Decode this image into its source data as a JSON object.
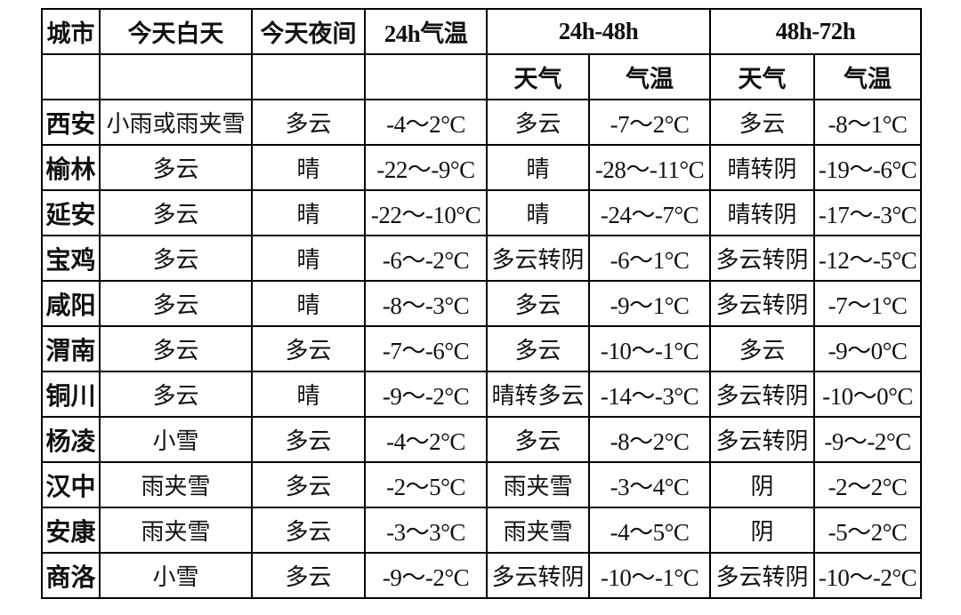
{
  "header": {
    "top": [
      "城市",
      "今天白天",
      "今天夜间",
      "24h气温",
      "24h-48h",
      "48h-72h"
    ],
    "sub": [
      "天气",
      "气温",
      "天气",
      "气温"
    ]
  },
  "rows": [
    [
      "西安",
      "小雨或雨夹雪",
      "多云",
      "-4～2°C",
      "多云",
      "-7～2°C",
      "多云",
      "-8～1°C"
    ],
    [
      "榆林",
      "多云",
      "晴",
      "-22～-9°C",
      "晴",
      "-28～-11°C",
      "晴转阴",
      "-19～-6°C"
    ],
    [
      "延安",
      "多云",
      "晴",
      "-22～-10°C",
      "晴",
      "-24～-7°C",
      "晴转阴",
      "-17～-3°C"
    ],
    [
      "宝鸡",
      "多云",
      "晴",
      "-6～-2°C",
      "多云转阴",
      "-6～1°C",
      "多云转阴",
      "-12～-5°C"
    ],
    [
      "咸阳",
      "多云",
      "晴",
      "-8～-3°C",
      "多云",
      "-9～1°C",
      "多云转阴",
      "-7～1°C"
    ],
    [
      "渭南",
      "多云",
      "多云",
      "-7～-6°C",
      "多云",
      "-10～-1°C",
      "多云",
      "-9～0°C"
    ],
    [
      "铜川",
      "多云",
      "晴",
      "-9～-2°C",
      "晴转多云",
      "-14～-3°C",
      "多云转阴",
      "-10～0°C"
    ],
    [
      "杨凌",
      "小雪",
      "多云",
      "-4～2°C",
      "多云",
      "-8～2°C",
      "多云转阴",
      "-9～-2°C"
    ],
    [
      "汉中",
      "雨夹雪",
      "多云",
      "-2～5°C",
      "雨夹雪",
      "-3～4°C",
      "阴",
      "-2～2°C"
    ],
    [
      "安康",
      "雨夹雪",
      "多云",
      "-3～3°C",
      "雨夹雪",
      "-4～5°C",
      "阴",
      "-5～2°C"
    ],
    [
      "商洛",
      "小雪",
      "多云",
      "-9～-2°C",
      "多云转阴",
      "-10～-1°C",
      "多云转阴",
      "-10～-2°C"
    ]
  ]
}
